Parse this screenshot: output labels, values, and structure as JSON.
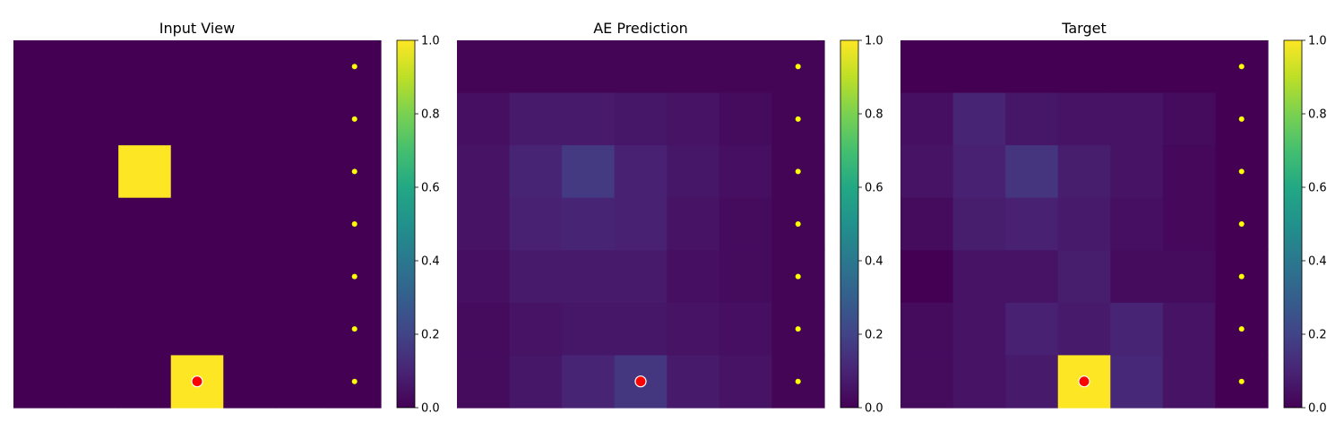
{
  "chart_data": [
    {
      "type": "heatmap",
      "title": "Input View",
      "grid": [
        [
          0,
          0,
          0,
          0,
          0,
          0,
          0
        ],
        [
          0,
          0,
          0,
          0,
          0,
          0,
          0
        ],
        [
          0,
          0,
          1,
          0,
          0,
          0,
          0
        ],
        [
          0,
          0,
          0,
          0,
          0,
          0,
          0
        ],
        [
          0,
          0,
          0,
          0,
          0,
          0,
          0
        ],
        [
          0,
          0,
          0,
          0,
          0,
          0,
          0
        ],
        [
          0,
          0,
          0,
          1,
          0,
          0,
          0
        ]
      ],
      "colorbar": {
        "range": [
          0,
          1
        ],
        "ticks": [
          "0.0",
          "0.2",
          "0.4",
          "0.6",
          "0.8",
          "1.0"
        ],
        "colormap": "viridis"
      },
      "agent_marker": {
        "row": 6,
        "col": 3.5,
        "color": "#ff0000"
      },
      "goal_markers": {
        "col": 6.5,
        "rows": [
          0,
          1,
          2,
          3,
          4,
          5,
          6
        ],
        "color": "#ffff00"
      },
      "axes_visible": false
    },
    {
      "type": "heatmap",
      "title": "AE Prediction",
      "grid": [
        [
          0.01,
          0.01,
          0.01,
          0.01,
          0.01,
          0.01,
          0.01
        ],
        [
          0.04,
          0.07,
          0.07,
          0.06,
          0.05,
          0.03,
          0.01
        ],
        [
          0.05,
          0.1,
          0.17,
          0.09,
          0.06,
          0.04,
          0.01
        ],
        [
          0.05,
          0.09,
          0.1,
          0.09,
          0.05,
          0.03,
          0.01
        ],
        [
          0.04,
          0.07,
          0.07,
          0.07,
          0.04,
          0.03,
          0.01
        ],
        [
          0.03,
          0.05,
          0.06,
          0.06,
          0.05,
          0.04,
          0.01
        ],
        [
          0.03,
          0.06,
          0.1,
          0.16,
          0.07,
          0.05,
          0.01
        ]
      ],
      "colorbar": {
        "range": [
          0,
          1
        ],
        "ticks": [
          "0.0",
          "0.2",
          "0.4",
          "0.6",
          "0.8",
          "1.0"
        ],
        "colormap": "viridis"
      },
      "agent_marker": {
        "row": 6,
        "col": 3.5,
        "color": "#ff0000"
      },
      "goal_markers": {
        "col": 6.5,
        "rows": [
          0,
          1,
          2,
          3,
          4,
          5,
          6
        ],
        "color": "#ffff00"
      },
      "axes_visible": false
    },
    {
      "type": "heatmap",
      "title": "Target",
      "grid": [
        [
          0.0,
          0.0,
          0.0,
          0.0,
          0.0,
          0.0,
          0.0
        ],
        [
          0.04,
          0.1,
          0.06,
          0.05,
          0.05,
          0.03,
          0.0
        ],
        [
          0.05,
          0.09,
          0.15,
          0.08,
          0.05,
          0.02,
          0.0
        ],
        [
          0.03,
          0.08,
          0.09,
          0.07,
          0.04,
          0.02,
          0.0
        ],
        [
          0.0,
          0.05,
          0.05,
          0.08,
          0.03,
          0.03,
          0.0
        ],
        [
          0.03,
          0.05,
          0.09,
          0.07,
          0.1,
          0.05,
          0.0
        ],
        [
          0.03,
          0.05,
          0.07,
          1.0,
          0.11,
          0.05,
          0.0
        ]
      ],
      "colorbar": {
        "range": [
          0,
          1
        ],
        "ticks": [
          "0.0",
          "0.2",
          "0.4",
          "0.6",
          "0.8",
          "1.0"
        ],
        "colormap": "viridis"
      },
      "agent_marker": {
        "row": 6,
        "col": 3.5,
        "color": "#ff0000"
      },
      "goal_markers": {
        "col": 6.5,
        "rows": [
          0,
          1,
          2,
          3,
          4,
          5,
          6
        ],
        "color": "#ffff00"
      },
      "axes_visible": false
    }
  ]
}
